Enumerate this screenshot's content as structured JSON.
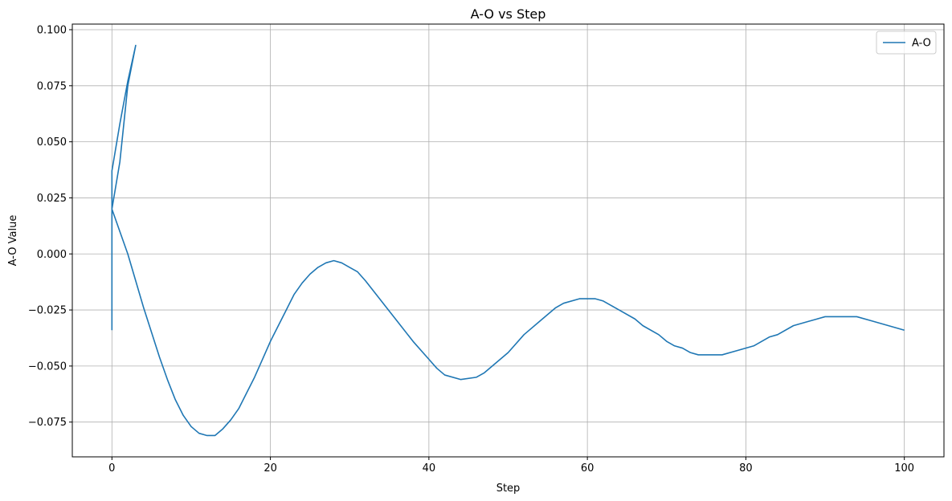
{
  "chart_data": {
    "type": "line",
    "title": "A-O vs Step",
    "xlabel": "Step",
    "ylabel": "A-O Value",
    "xlim": [
      -5,
      105
    ],
    "ylim": [
      -0.0905,
      0.1025
    ],
    "xticks": [
      0,
      20,
      40,
      60,
      80,
      100
    ],
    "xtick_labels": [
      "0",
      "20",
      "40",
      "60",
      "80",
      "100"
    ],
    "yticks": [
      -0.075,
      -0.05,
      -0.025,
      0.0,
      0.025,
      0.05,
      0.075,
      0.1
    ],
    "ytick_labels": [
      "−0.075",
      "−0.050",
      "−0.025",
      "0.000",
      "0.025",
      "0.050",
      "0.075",
      "0.100"
    ],
    "grid": true,
    "legend_position": "top-right",
    "colors": {
      "series": "#1f77b4",
      "grid": "#b0b0b0",
      "axes": "#000000"
    },
    "series": [
      {
        "name": "A-O",
        "x": [
          0,
          0,
          0,
          1,
          2,
          3,
          2,
          1,
          0,
          0,
          1,
          2,
          3,
          4,
          5,
          6,
          7,
          8,
          9,
          10,
          11,
          12,
          13,
          14,
          15,
          16,
          17,
          18,
          19,
          20,
          21,
          22,
          23,
          24,
          25,
          26,
          27,
          28,
          29,
          30,
          31,
          32,
          34,
          36,
          38,
          40,
          41,
          42,
          44,
          46,
          47,
          48,
          50,
          52,
          54,
          56,
          57,
          59,
          61,
          62,
          64,
          66,
          67,
          69,
          70,
          71,
          72,
          73,
          74,
          75,
          77,
          79,
          81,
          83,
          84,
          86,
          88,
          90,
          92,
          94,
          96,
          98,
          100
        ],
        "y": [
          -0.034,
          0.037,
          0.037,
          0.058,
          0.077,
          0.093,
          0.075,
          0.041,
          0.02,
          0.02,
          0.01,
          0.0,
          -0.012,
          -0.024,
          -0.035,
          -0.046,
          -0.056,
          -0.065,
          -0.072,
          -0.077,
          -0.08,
          -0.081,
          -0.081,
          -0.078,
          -0.074,
          -0.069,
          -0.062,
          -0.055,
          -0.047,
          -0.039,
          -0.032,
          -0.025,
          -0.018,
          -0.013,
          -0.009,
          -0.006,
          -0.004,
          -0.003,
          -0.004,
          -0.006,
          -0.008,
          -0.012,
          -0.021,
          -0.03,
          -0.039,
          -0.047,
          -0.051,
          -0.054,
          -0.056,
          -0.055,
          -0.053,
          -0.05,
          -0.044,
          -0.036,
          -0.03,
          -0.024,
          -0.022,
          -0.02,
          -0.02,
          -0.021,
          -0.025,
          -0.029,
          -0.032,
          -0.036,
          -0.039,
          -0.041,
          -0.042,
          -0.044,
          -0.045,
          -0.045,
          -0.045,
          -0.043,
          -0.041,
          -0.037,
          -0.036,
          -0.032,
          -0.03,
          -0.028,
          -0.028,
          -0.028,
          -0.03,
          -0.032,
          -0.034
        ]
      }
    ]
  }
}
